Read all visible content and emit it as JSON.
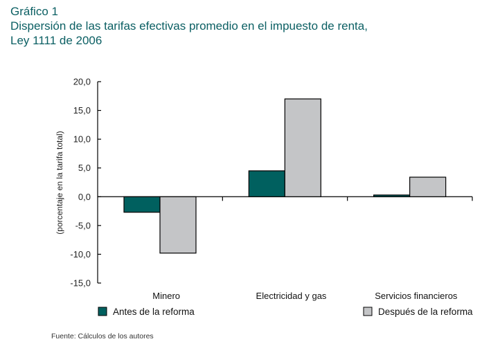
{
  "header": {
    "figure_number": "Gráfico 1",
    "title_line1": "Dispersión de las tarifas efectivas promedio en el impuesto de renta,",
    "title_line2": "Ley 1111 de 2006"
  },
  "source": "Fuente: Cálculos de los autores",
  "chart_data": {
    "type": "bar",
    "title": "Dispersión de las tarifas efectivas promedio en el impuesto de renta, Ley 1111 de 2006",
    "xlabel": "",
    "ylabel": "(porcentaje en la tarifa total)",
    "ylim": [
      -15,
      20
    ],
    "yticks": [
      20,
      15,
      10,
      5,
      0,
      -5,
      -10,
      -15
    ],
    "ytick_labels": [
      "20,0",
      "15,0",
      "10,0",
      "5,0",
      "0,0",
      "-5,0",
      "-10,0",
      "-15,0"
    ],
    "categories": [
      "Minero",
      "Electricidad y gas",
      "Servicios financieros"
    ],
    "series": [
      {
        "name": "Antes de la reforma",
        "color": "#00605f",
        "values": [
          -2.7,
          4.5,
          0.3
        ]
      },
      {
        "name": "Después de la reforma",
        "color": "#c4c5c7",
        "values": [
          -9.8,
          17.0,
          3.4
        ]
      }
    ],
    "grid": false,
    "legend": "bottom"
  }
}
